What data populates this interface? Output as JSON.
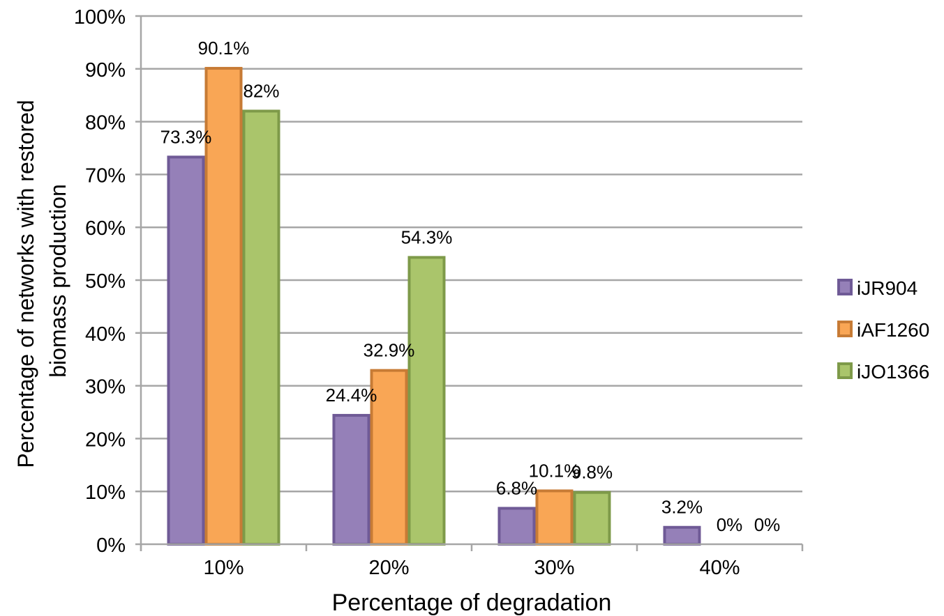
{
  "chart_data": {
    "type": "bar",
    "categories": [
      "10%",
      "20%",
      "30%",
      "40%"
    ],
    "series": [
      {
        "name": "iJR904",
        "values": [
          73.3,
          24.4,
          6.8,
          3.2
        ],
        "labels": [
          "73.3%",
          "24.4%",
          "6.8%",
          "3.2%"
        ],
        "fill": "#9580b8",
        "stroke": "#6f5a96"
      },
      {
        "name": "iAF1260",
        "values": [
          90.1,
          32.9,
          10.1,
          0
        ],
        "labels": [
          "90.1%",
          "32.9%",
          "10.1%",
          "0%"
        ],
        "fill": "#f9a655",
        "stroke": "#c77b35"
      },
      {
        "name": "iJO1366",
        "values": [
          82,
          54.3,
          9.8,
          0
        ],
        "labels": [
          "82%",
          "54.3%",
          "9.8%",
          "0%"
        ],
        "fill": "#aac56b",
        "stroke": "#7e9a49"
      }
    ],
    "xlabel": "Percentage of degradation",
    "ylabel": "Percentage of networks with restored biomass production",
    "ylabel_lines": [
      "Percentage of networks with restored",
      "biomass production"
    ],
    "ylim": [
      0,
      100
    ],
    "yticks": [
      "0%",
      "10%",
      "20%",
      "30%",
      "40%",
      "50%",
      "60%",
      "70%",
      "80%",
      "90%",
      "100%"
    ],
    "grid": true,
    "legend_position": "right",
    "gridline_color": "#a6a6a6"
  }
}
